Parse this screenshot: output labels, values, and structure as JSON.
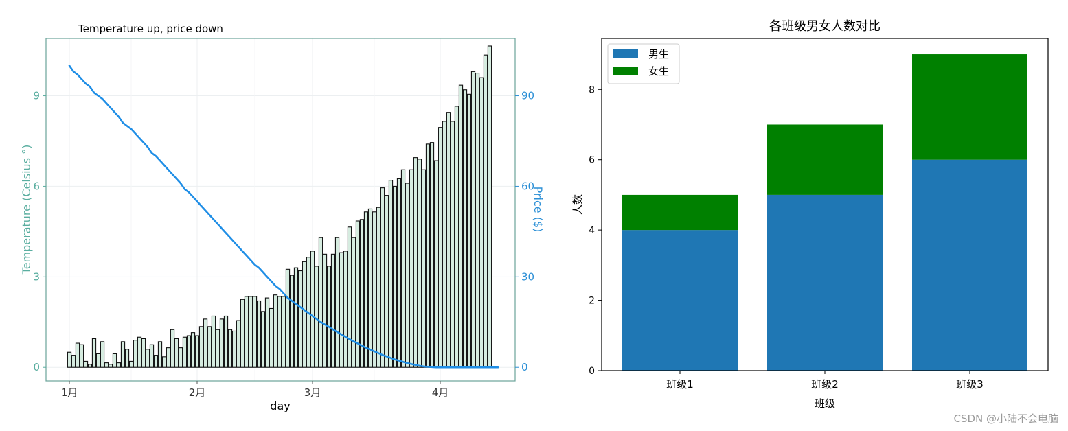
{
  "colors": {
    "left_axis": "#5aaea0",
    "right_axis": "#2b8fd6",
    "price_line": "#1f8ee6",
    "temp_bar_fill": "#d6ece0",
    "temp_bar_edge": "#111111",
    "male": "#1f77b4",
    "female": "#008000",
    "grid": "#eceff1",
    "frame_left": "#6aa39a"
  },
  "watermark": "CSDN @小陆不会电脑",
  "chart_data": [
    {
      "type": "bar+line",
      "title": "Temperature up, price down",
      "xlabel": "day",
      "ylabel": "Temperature (Celsius °)",
      "ylabel_right": "Price ($)",
      "x_ticks": [
        "1月",
        "2月",
        "3月",
        "4月"
      ],
      "ylim": [
        -0.45,
        10.9
      ],
      "yticks": [
        0,
        3,
        6,
        9
      ],
      "ylim_right": [
        -4.5,
        109
      ],
      "yticks_right": [
        0,
        30,
        60,
        90
      ],
      "grid": true,
      "series": [
        {
          "kind": "bar",
          "values": [
            0.5,
            0.4,
            0.8,
            0.75,
            0.2,
            0.1,
            0.95,
            0.45,
            0.85,
            0.15,
            0.1,
            0.45,
            0.15,
            0.85,
            0.6,
            0.2,
            0.9,
            1.0,
            0.95,
            0.6,
            0.75,
            0.4,
            0.85,
            0.35,
            0.65,
            1.25,
            0.95,
            0.65,
            1.0,
            1.05,
            1.15,
            1.05,
            1.35,
            1.6,
            1.35,
            1.7,
            1.25,
            1.6,
            1.7,
            1.25,
            1.2,
            1.55,
            2.25,
            2.35,
            2.35,
            2.35,
            2.2,
            1.85,
            2.3,
            1.95,
            2.4,
            2.35,
            2.35,
            3.25,
            3.05,
            3.3,
            3.2,
            3.5,
            3.65,
            3.85,
            3.35,
            4.3,
            3.75,
            3.35,
            3.75,
            4.3,
            3.8,
            3.85,
            4.65,
            4.3,
            4.85,
            4.9,
            5.15,
            5.25,
            5.15,
            5.3,
            5.95,
            5.7,
            6.2,
            6.0,
            6.25,
            6.55,
            6.1,
            6.55,
            6.95,
            6.9,
            6.55,
            7.4,
            7.45,
            6.85,
            7.95,
            8.15,
            8.45,
            8.15,
            8.65,
            9.35,
            9.2,
            9.05,
            9.8,
            9.75,
            9.6,
            10.35,
            10.65
          ]
        },
        {
          "kind": "line",
          "name": "price",
          "values": [
            100,
            98,
            97,
            95.5,
            94,
            93,
            91,
            90,
            89,
            87.5,
            86,
            84.5,
            83,
            81,
            80,
            79,
            77.5,
            76,
            74.5,
            73,
            71,
            70,
            68.5,
            67,
            65.5,
            64,
            62.5,
            61,
            59,
            58,
            56.5,
            55,
            53.5,
            52,
            50.5,
            49,
            47.5,
            46,
            44.5,
            43,
            41.5,
            40,
            38.5,
            37,
            35.5,
            34,
            33,
            31.5,
            30,
            28.5,
            27,
            26,
            24.5,
            23,
            22,
            21,
            20,
            19,
            18,
            17,
            16,
            15,
            14.2,
            13.4,
            12.5,
            11.7,
            10.9,
            10.1,
            9.3,
            8.6,
            7.9,
            7.2,
            6.5,
            5.9,
            5.3,
            4.7,
            4.1,
            3.6,
            3.1,
            2.6,
            2.2,
            1.8,
            1.4,
            1.1,
            0.8,
            0.5,
            0.3,
            0.2,
            0.1,
            0,
            0,
            0,
            0,
            0,
            0,
            0,
            0,
            0,
            0,
            0,
            0,
            0,
            0,
            0,
            0
          ]
        }
      ]
    },
    {
      "type": "bar",
      "stacked": true,
      "title": "各班级男女人数对比",
      "xlabel": "班级",
      "ylabel": "人数",
      "categories": [
        "班级1",
        "班级2",
        "班级3"
      ],
      "ylim": [
        0,
        9.45
      ],
      "yticks": [
        0,
        2,
        4,
        6,
        8
      ],
      "legend_position": "top-left",
      "series": [
        {
          "name": "男生",
          "values": [
            4,
            5,
            6
          ]
        },
        {
          "name": "女生",
          "values": [
            1,
            2,
            3
          ]
        }
      ]
    }
  ]
}
